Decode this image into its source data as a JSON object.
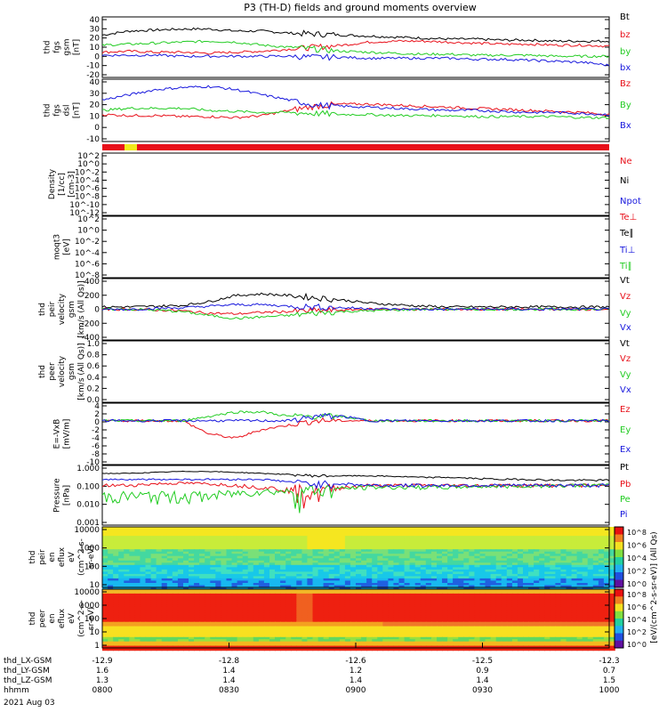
{
  "title": "P3 (TH-D) fields and ground moments overview",
  "colors": {
    "black": "#000000",
    "red": "#e8101a",
    "green": "#22cc22",
    "blue": "#1818dd",
    "yellow": "#f2ea1a"
  },
  "chart_data": {
    "type": "line",
    "x_axis": {
      "range": [
        "0800",
        "1000"
      ],
      "ticks": [
        "0800",
        "0830",
        "0900",
        "0930",
        "1000"
      ],
      "rows": [
        {
          "label": "thd_LX-GSM",
          "values": [
            "-12.9",
            "-12.8",
            "-12.6",
            "-12.5",
            "-12.3"
          ]
        },
        {
          "label": "thd_LY-GSM",
          "values": [
            "1.6",
            "1.4",
            "1.2",
            "0.9",
            "0.7"
          ]
        },
        {
          "label": "thd_LZ-GSM",
          "values": [
            "1.3",
            "1.4",
            "1.4",
            "1.4",
            "1.5"
          ]
        },
        {
          "label": "hhmm",
          "values": [
            "0800",
            "0830",
            "0900",
            "0930",
            "1000"
          ]
        }
      ],
      "date": "2021 Aug 03"
    },
    "panels": [
      {
        "id": "fgs_gsm",
        "ylabel": [
          "thd",
          "fgs",
          "gsm",
          "[nT]"
        ],
        "ylim": [
          -20,
          40
        ],
        "yticks": [
          "40",
          "30",
          "20",
          "10",
          "0",
          "-10",
          "-20"
        ],
        "series": [
          {
            "name": "Bt",
            "color": "black",
            "values": [
              22,
              26,
              27,
              28,
              28,
              26,
              26,
              24,
              23,
              22,
              21,
              20,
              19,
              18,
              18,
              17,
              17,
              16,
              16,
              16
            ]
          },
          {
            "name": "bz",
            "color": "red",
            "values": [
              5,
              6,
              5,
              5,
              4,
              5,
              6,
              8,
              10,
              12,
              15,
              16,
              16,
              15,
              14,
              13,
              13,
              12,
              12,
              11
            ]
          },
          {
            "name": "by",
            "color": "green",
            "values": [
              12,
              13,
              14,
              15,
              16,
              15,
              12,
              10,
              8,
              6,
              5,
              4,
              3,
              3,
              2,
              2,
              2,
              1,
              1,
              1
            ]
          },
          {
            "name": "bx",
            "color": "blue",
            "values": [
              2,
              2,
              2,
              1,
              1,
              1,
              1,
              1,
              0,
              0,
              -1,
              -1,
              -1,
              -1,
              -2,
              -2,
              -3,
              -4,
              -5,
              -8
            ]
          }
        ]
      },
      {
        "id": "fgs_dsl",
        "ylabel": [
          "thd",
          "fgs",
          "dsl",
          "[nT]"
        ],
        "ylim": [
          -20,
          40
        ],
        "yticks": [
          "40",
          "30",
          "20",
          "10",
          "0",
          "-10"
        ],
        "series": [
          {
            "name": "Bz",
            "color": "red",
            "values": [
              6,
              5,
              5,
              4,
              4,
              3,
              5,
              10,
              14,
              16,
              16,
              15,
              14,
              13,
              12,
              11,
              10,
              9,
              8,
              6
            ]
          },
          {
            "name": "By",
            "color": "green",
            "values": [
              10,
              12,
              12,
              12,
              10,
              9,
              8,
              8,
              7,
              6,
              6,
              5,
              5,
              5,
              4,
              4,
              4,
              4,
              3,
              3
            ]
          },
          {
            "name": "Bx",
            "color": "blue",
            "values": [
              20,
              25,
              30,
              32,
              33,
              30,
              25,
              20,
              15,
              14,
              13,
              12,
              11,
              10,
              10,
              9,
              8,
              8,
              7,
              6
            ]
          }
        ]
      },
      {
        "id": "density",
        "ylabel": [
          "Density",
          "[1/cc]",
          "[cm-3]"
        ],
        "ylim": [
          "1e-14",
          "1e2"
        ],
        "yticks": [
          "10^2",
          "10^0",
          "10^-2",
          "10^-4",
          "10^-6",
          "10^-8",
          "10^-10",
          "10^-12"
        ],
        "series": [
          {
            "name": "Ne",
            "color": "red"
          },
          {
            "name": "Ni",
            "color": "black"
          },
          {
            "name": "Npot",
            "color": "blue"
          }
        ]
      },
      {
        "id": "temp",
        "ylabel": [
          "moqt3",
          "[eV]"
        ],
        "ylim": [
          "1e-10",
          "1e2"
        ],
        "yticks": [
          "10^2",
          "10^0",
          "10^-2",
          "10^-4",
          "10^-6",
          "10^-8"
        ],
        "series": [
          {
            "name": "Te⊥",
            "color": "red"
          },
          {
            "name": "Te∥",
            "color": "black"
          },
          {
            "name": "Ti⊥",
            "color": "blue"
          },
          {
            "name": "Ti∥",
            "color": "green"
          }
        ]
      },
      {
        "id": "peir_velocity",
        "ylabel": [
          "thd",
          "peir",
          "velocity",
          "gsm",
          "[km/s (All Qs)]"
        ],
        "ylim": [
          -400,
          400
        ],
        "yticks": [
          "400",
          "200",
          "0",
          "-200",
          "-400"
        ],
        "series": [
          {
            "name": "Vt",
            "color": "black",
            "values": [
              30,
              30,
              40,
              50,
              100,
              180,
              200,
              180,
              150,
              120,
              80,
              60,
              40,
              30,
              30,
              30,
              30,
              30,
              30,
              30
            ]
          },
          {
            "name": "Vz",
            "color": "red",
            "values": [
              0,
              0,
              -10,
              -20,
              -50,
              -60,
              -40,
              -30,
              -20,
              -10,
              0,
              0,
              0,
              0,
              0,
              0,
              0,
              0,
              0,
              0
            ]
          },
          {
            "name": "Vy",
            "color": "green",
            "values": [
              0,
              0,
              -10,
              -30,
              -80,
              -120,
              -100,
              -80,
              -50,
              -30,
              -20,
              -10,
              0,
              0,
              0,
              0,
              0,
              0,
              0,
              0
            ]
          },
          {
            "name": "Vx",
            "color": "blue",
            "values": [
              0,
              0,
              10,
              20,
              40,
              60,
              60,
              40,
              30,
              20,
              10,
              0,
              0,
              0,
              0,
              0,
              0,
              0,
              0,
              0
            ]
          }
        ]
      },
      {
        "id": "peer_velocity",
        "ylabel": [
          "thd",
          "peer",
          "velocity",
          "gsm",
          "[km/s (All Qs)]"
        ],
        "ylim": [
          0,
          1
        ],
        "yticks": [
          "1.0",
          "0.8",
          "0.6",
          "0.4",
          "0.2",
          "0.0"
        ],
        "series": [
          {
            "name": "Vt",
            "color": "black"
          },
          {
            "name": "Vz",
            "color": "red"
          },
          {
            "name": "Vy",
            "color": "green"
          },
          {
            "name": "Vx",
            "color": "blue"
          }
        ]
      },
      {
        "id": "efield",
        "ylabel": [
          "E=-VxB",
          "[mV/m]"
        ],
        "ylim": [
          -10,
          4
        ],
        "yticks": [
          "4",
          "2",
          "0",
          "-2",
          "-4",
          "-6",
          "-8",
          "-10"
        ],
        "series": [
          {
            "name": "Ez",
            "color": "red",
            "values": [
              0,
              0,
              0,
              0,
              -3,
              -4,
              -2,
              -1,
              0,
              0,
              0,
              0,
              0,
              0,
              0,
              0,
              0,
              0,
              0,
              0
            ]
          },
          {
            "name": "Ey",
            "color": "green",
            "values": [
              0,
              0,
              0,
              0,
              1,
              2,
              2,
              1,
              1,
              1,
              0,
              0,
              0,
              0,
              0,
              0,
              0,
              0,
              0,
              0
            ]
          },
          {
            "name": "Ex",
            "color": "blue",
            "values": [
              0,
              0,
              0,
              0,
              0,
              0,
              0,
              0,
              1,
              1,
              0,
              0,
              0,
              0,
              0,
              0,
              0,
              0,
              0,
              0
            ]
          }
        ]
      },
      {
        "id": "pressure",
        "ylabel": [
          "Pressure",
          "[nPa]"
        ],
        "ylim": [
          "0.001",
          "1.000"
        ],
        "yticks": [
          "1.000",
          "0.100",
          "0.010",
          "0.001"
        ],
        "series": [
          {
            "name": "Pt",
            "color": "black",
            "values": [
              0.4,
              0.4,
              0.45,
              0.5,
              0.5,
              0.45,
              0.4,
              0.35,
              0.3,
              0.3,
              0.3,
              0.28,
              0.25,
              0.25,
              0.22,
              0.2,
              0.2,
              0.18,
              0.18,
              0.18
            ]
          },
          {
            "name": "Pb",
            "color": "red",
            "values": [
              0.1,
              0.1,
              0.12,
              0.13,
              0.12,
              0.1,
              0.08,
              0.06,
              0.05,
              0.08,
              0.1,
              0.1,
              0.1,
              0.1,
              0.1,
              0.1,
              0.1,
              0.1,
              0.1,
              0.1
            ]
          },
          {
            "name": "Pe",
            "color": "green",
            "values": [
              0.03,
              0.03,
              0.03,
              0.03,
              0.03,
              0.04,
              0.05,
              0.05,
              0.06,
              0.07,
              0.08,
              0.08,
              0.08,
              0.08,
              0.09,
              0.09,
              0.09,
              0.1,
              0.1,
              0.1
            ]
          },
          {
            "name": "Pi",
            "color": "blue",
            "values": [
              0.2,
              0.2,
              0.2,
              0.2,
              0.2,
              0.2,
              0.2,
              0.15,
              0.12,
              0.12,
              0.1,
              0.1,
              0.1,
              0.1,
              0.1,
              0.1,
              0.1,
              0.1,
              0.1,
              0.1
            ]
          }
        ]
      },
      {
        "id": "peir_en_eflux",
        "type": "heatmap",
        "ylabel": [
          "thd",
          "peir",
          "en",
          "eflux",
          "eV",
          "(cm^2-s-",
          "sr-eV)"
        ],
        "ylim": [
          "1",
          "30000"
        ],
        "yticks": [
          "10000",
          "1000",
          "100",
          "10"
        ]
      },
      {
        "id": "peer_en_eflux",
        "type": "heatmap",
        "ylabel": [
          "thd",
          "peer",
          "en",
          "eflux",
          "eV",
          "(cm^2-s-",
          "sr-eV)"
        ],
        "ylim": [
          "1",
          "30000"
        ],
        "yticks": [
          "10000",
          "1000",
          "100",
          "10",
          "1"
        ]
      }
    ],
    "colorbar": {
      "label": "[eV/(cm^2-s-sr-eV)] (All Qs)",
      "upper_ticks": [
        "10^8",
        "10^6",
        "10^4",
        "10^2",
        "10^0"
      ],
      "lower_ticks": [
        "10^8",
        "10^6",
        "10^4",
        "10^2",
        "10^0"
      ]
    }
  }
}
